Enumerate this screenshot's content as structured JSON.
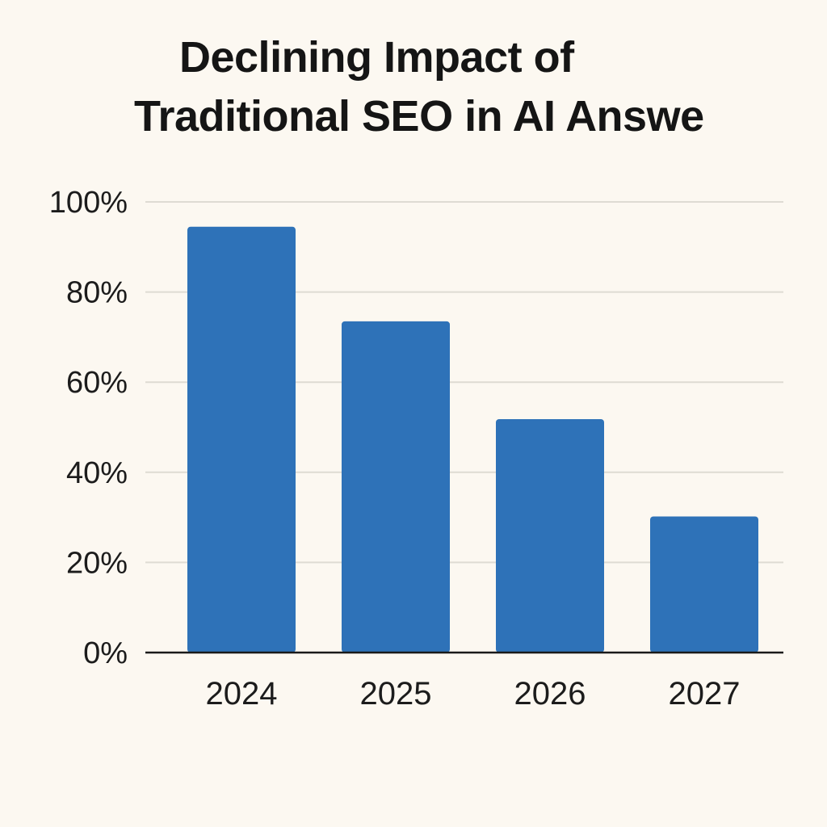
{
  "chart_data": {
    "type": "bar",
    "title_lines": [
      "Declining Impact of",
      "Traditional SEO in AI Answe"
    ],
    "categories": [
      "2024",
      "2025",
      "2026",
      "2027"
    ],
    "values": [
      94.5,
      73.5,
      51.8,
      30.2
    ],
    "ylim": [
      0,
      100
    ],
    "yticks": [
      0,
      20,
      40,
      60,
      80,
      100
    ],
    "ytick_labels": [
      "0%",
      "20%",
      "40%",
      "60%",
      "80%",
      "100%"
    ],
    "xlabel": "",
    "ylabel": "",
    "grid": true,
    "legend": "none",
    "colors": {
      "bar": "#2e72b8",
      "grid": "#dedbd3",
      "axis": "#1a1a1a",
      "background": "#fcf8f1"
    }
  }
}
